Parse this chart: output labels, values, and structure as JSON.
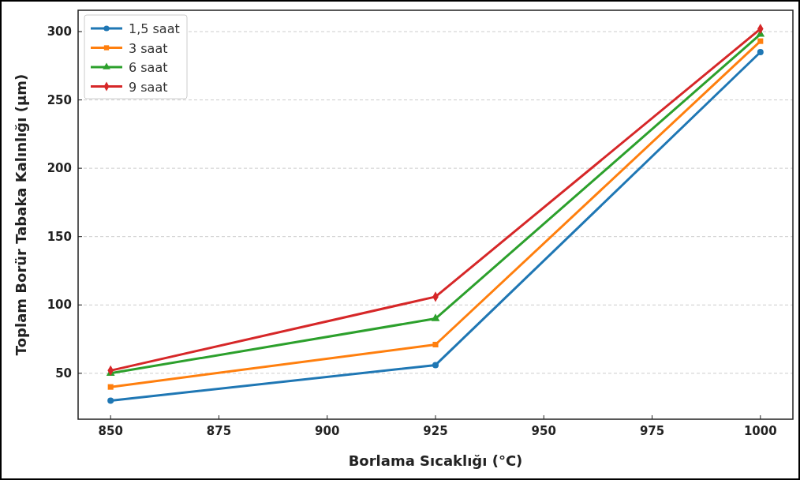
{
  "chart_data": {
    "type": "line",
    "xlabel": "Borlama Sıcaklığı (°C)",
    "ylabel": "Toplam Borür Tabaka Kalınlığı (µm)",
    "x": [
      850,
      925,
      1000
    ],
    "series": [
      {
        "name": "1,5 saat",
        "color": "#1f77b4",
        "marker": "circle",
        "values": [
          30,
          56,
          285
        ]
      },
      {
        "name": "3 saat",
        "color": "#ff7f0e",
        "marker": "square",
        "values": [
          40,
          71,
          293
        ]
      },
      {
        "name": "6 saat",
        "color": "#2ca02c",
        "marker": "triangle",
        "values": [
          50,
          90,
          298
        ]
      },
      {
        "name": "9 saat",
        "color": "#d62728",
        "marker": "diamond",
        "values": [
          52,
          106,
          302
        ]
      }
    ],
    "xlim": [
      842.5,
      1007.5
    ],
    "xticks": [
      850,
      875,
      900,
      925,
      950,
      975,
      1000
    ],
    "ylim": [
      16.4,
      315.6
    ],
    "yticks": [
      50,
      100,
      150,
      200,
      250,
      300
    ],
    "grid": "y",
    "legend": "top left"
  }
}
